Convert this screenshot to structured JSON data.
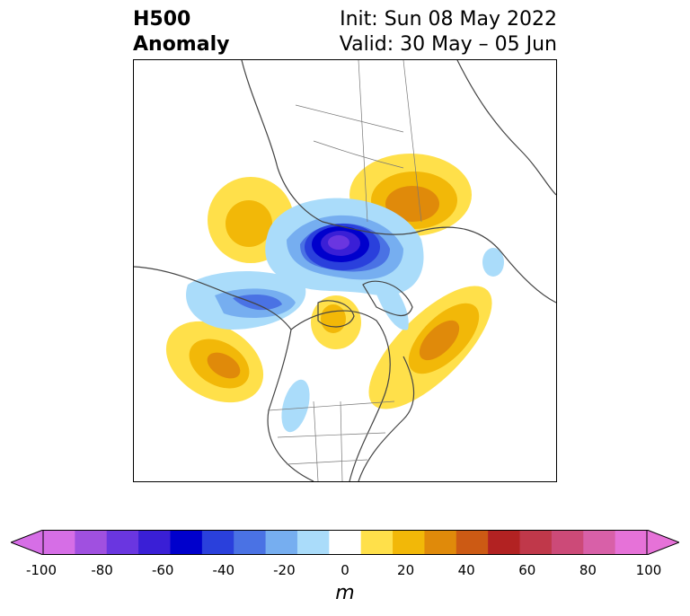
{
  "header": {
    "left_line1": "H500",
    "left_line2": "Anomaly",
    "right_line1": "Init: Sun 08 May 2022",
    "right_line2": "Valid: 30 May – 05 Jun"
  },
  "colorbar": {
    "units": "m",
    "ticks": [
      "-100",
      "-80",
      "-60",
      "-40",
      "-20",
      "0",
      "20",
      "40",
      "60",
      "80",
      "100"
    ],
    "colors": [
      "#d66ee6",
      "#a050e0",
      "#6a36e0",
      "#3a1fd6",
      "#0000cc",
      "#2a40dc",
      "#4a72e4",
      "#76aef0",
      "#aadcfa",
      "#ffffff",
      "#ffe04a",
      "#f2b808",
      "#e08a0a",
      "#cc5a14",
      "#b22222",
      "#c0384a",
      "#cc4a78",
      "#d860a8",
      "#e672d8"
    ]
  }
}
